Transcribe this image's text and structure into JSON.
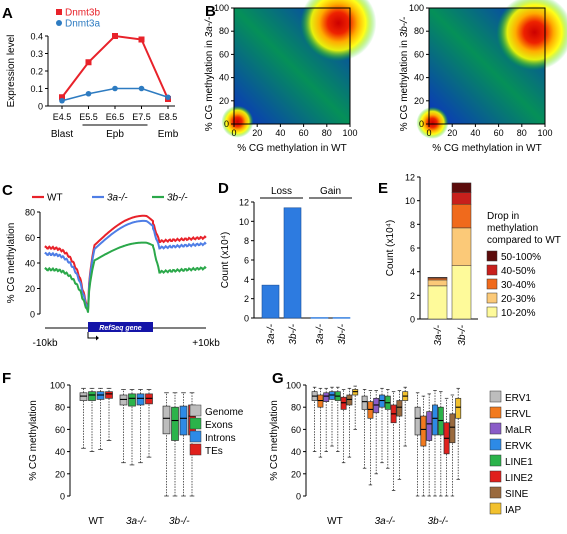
{
  "panels": {
    "A": "A",
    "B": "B",
    "C": "C",
    "D": "D",
    "E": "E",
    "F": "F",
    "G": "G"
  },
  "chart_data": [
    {
      "id": "A",
      "type": "line",
      "ylabel": "Expression level",
      "ylim": [
        0,
        0.4
      ],
      "yticks": [
        "0",
        "0.1",
        "0.2",
        "0.3",
        "0.4"
      ],
      "categories": [
        "E4.5",
        "E5.5",
        "E6.5",
        "E7.5",
        "E8.5"
      ],
      "groups": [
        {
          "label": "Blast",
          "from": 0,
          "to": 0
        },
        {
          "label": "Epb",
          "from": 1,
          "to": 3
        },
        {
          "label": "Emb",
          "from": 4,
          "to": 4
        }
      ],
      "series": [
        {
          "name": "Dnmt3b",
          "color": "#e8222a",
          "values": [
            0.05,
            0.25,
            0.4,
            0.38,
            0.04
          ]
        },
        {
          "name": "Dnmt3a",
          "color": "#2d7bc1",
          "values": [
            0.03,
            0.07,
            0.1,
            0.1,
            0.05
          ]
        }
      ],
      "legend": "top-left"
    },
    {
      "id": "B",
      "type": "heatmap",
      "plots": [
        {
          "xlabel": "% CG methylation in WT",
          "ylabel_prefix": "% CG methylation in ",
          "ylabel_italic": "3a-/-",
          "hotspots": [
            {
              "x": 3,
              "y": 2
            },
            {
              "x": 90,
              "y": 87
            }
          ]
        },
        {
          "xlabel": "% CG methylation in WT",
          "ylabel_prefix": "% CG methylation in ",
          "ylabel_italic": "3b-/-",
          "hotspots": [
            {
              "x": 3,
              "y": 1
            },
            {
              "x": 91,
              "y": 79
            }
          ]
        }
      ],
      "xlim": [
        0,
        100
      ],
      "ylim": [
        0,
        100
      ],
      "ticks": [
        "0",
        "20",
        "40",
        "60",
        "80",
        "100"
      ]
    },
    {
      "id": "C",
      "type": "line",
      "ylabel": "% CG methylation",
      "ylim": [
        0,
        80
      ],
      "yticks": [
        "0",
        "20",
        "40",
        "60",
        "80"
      ],
      "xtick_left": "-10kb",
      "xtick_right": "+10kb",
      "gene_label": "RefSeq gene",
      "series": [
        {
          "name": "WT",
          "color": "#e8222a",
          "italic": false,
          "left": 52,
          "tss_min": 3,
          "body_start": 54,
          "body_peak": 77,
          "tes": 71,
          "after": 60,
          "right": 60
        },
        {
          "name": "3a-/-",
          "color": "#4f7ee6",
          "italic": true,
          "left": 47,
          "tss_min": 2,
          "body_start": 51,
          "body_peak": 73,
          "tes": 67,
          "after": 55,
          "right": 55
        },
        {
          "name": "3b-/-",
          "color": "#2ba84a",
          "italic": true,
          "left": 35,
          "tss_min": 1,
          "body_start": 42,
          "body_peak": 56,
          "tes": 53,
          "after": 36,
          "right": 35
        }
      ],
      "legend": "top"
    },
    {
      "id": "D",
      "type": "bar",
      "ylabel": "Count (x10⁴)",
      "ylim": [
        0,
        12
      ],
      "yticks": [
        "0",
        "2",
        "4",
        "6",
        "8",
        "10",
        "12"
      ],
      "groups": [
        "Loss",
        "Gain"
      ],
      "categories": [
        "3a-/-",
        "3b-/-",
        "3a-/-",
        "3b-/-"
      ],
      "values": [
        3.4,
        11.4,
        0.05,
        0.05
      ],
      "color": "#2d7be0"
    },
    {
      "id": "E",
      "type": "bar",
      "ylabel": "Count (x10⁴)",
      "ylim": [
        0,
        12
      ],
      "yticks": [
        "0",
        "2",
        "4",
        "6",
        "8",
        "10",
        "12"
      ],
      "categories": [
        "3a-/-",
        "3b-/-"
      ],
      "legend_title": [
        "Drop in",
        "methylation",
        "compared to WT"
      ],
      "series": [
        {
          "name": "10-20%",
          "color": "#fefa9a",
          "values": [
            2.8,
            4.5
          ]
        },
        {
          "name": "20-30%",
          "color": "#fbc978",
          "values": [
            0.5,
            3.2
          ]
        },
        {
          "name": "30-40%",
          "color": "#f06a1c",
          "values": [
            0.15,
            2.0
          ]
        },
        {
          "name": "40-50%",
          "color": "#c8201c",
          "values": [
            0.05,
            1.0
          ]
        },
        {
          "name": "50-100%",
          "color": "#5c0c0c",
          "values": [
            0.02,
            0.8
          ]
        }
      ]
    },
    {
      "id": "F",
      "type": "box",
      "ylabel": "% CG methylation",
      "ylim": [
        0,
        100
      ],
      "yticks": [
        "0",
        "20",
        "40",
        "60",
        "80",
        "100"
      ],
      "groups": [
        {
          "label": "WT",
          "italic": false
        },
        {
          "label": "3a-/-",
          "italic": true
        },
        {
          "label": "3b-/-",
          "italic": true
        }
      ],
      "series": [
        {
          "name": "Genome",
          "color": "#bdbdbd",
          "stats": [
            [
              43,
              86,
              90,
              93,
              97
            ],
            [
              30,
              82,
              87,
              91,
              96
            ],
            [
              0,
              56,
              70,
              81,
              93
            ]
          ]
        },
        {
          "name": "Exons",
          "color": "#2bb34a",
          "stats": [
            [
              40,
              86,
              91,
              94,
              97
            ],
            [
              28,
              81,
              88,
              92,
              96
            ],
            [
              0,
              50,
              68,
              80,
              93
            ]
          ]
        },
        {
          "name": "Introns",
          "color": "#2d8ae6",
          "stats": [
            [
              42,
              87,
              91,
              94,
              97
            ],
            [
              30,
              82,
              88,
              92,
              96
            ],
            [
              0,
              55,
              70,
              81,
              93
            ]
          ]
        },
        {
          "name": "TEs",
          "color": "#e0201c",
          "stats": [
            [
              50,
              88,
              92,
              94,
              97
            ],
            [
              35,
              83,
              88,
              92,
              96
            ],
            [
              0,
              55,
              72,
              82,
              93
            ]
          ]
        }
      ]
    },
    {
      "id": "G",
      "type": "box",
      "ylabel": "% CG methylation",
      "ylim": [
        0,
        100
      ],
      "yticks": [
        "0",
        "20",
        "40",
        "60",
        "80",
        "100"
      ],
      "groups": [
        {
          "label": "WT",
          "italic": false
        },
        {
          "label": "3a-/-",
          "italic": true
        },
        {
          "label": "3b-/-",
          "italic": true
        }
      ],
      "series": [
        {
          "name": "ERV1",
          "color": "#bdbdbd",
          "stats": [
            [
              40,
              86,
              90,
              94,
              98
            ],
            [
              25,
              78,
              85,
              90,
              96
            ],
            [
              0,
              55,
              70,
              80,
              93
            ]
          ]
        },
        {
          "name": "ERVL",
          "color": "#f27a1e",
          "stats": [
            [
              35,
              80,
              86,
              91,
              97
            ],
            [
              10,
              70,
              78,
              85,
              95
            ],
            [
              0,
              45,
              60,
              72,
              90
            ]
          ]
        },
        {
          "name": "MaLR",
          "color": "#8a5cc8",
          "stats": [
            [
              40,
              85,
              90,
              93,
              97
            ],
            [
              20,
              75,
              82,
              88,
              95
            ],
            [
              0,
              50,
              65,
              76,
              92
            ]
          ]
        },
        {
          "name": "ERVK",
          "color": "#2d8ae6",
          "stats": [
            [
              45,
              87,
              91,
              94,
              98
            ],
            [
              30,
              80,
              86,
              91,
              97
            ],
            [
              0,
              55,
              70,
              82,
              95
            ]
          ]
        },
        {
          "name": "LINE1",
          "color": "#2bb34a",
          "stats": [
            [
              40,
              86,
              90,
              94,
              98
            ],
            [
              25,
              78,
              84,
              90,
              96
            ],
            [
              0,
              55,
              68,
              80,
              94
            ]
          ]
        },
        {
          "name": "LINE2",
          "color": "#e0201c",
          "stats": [
            [
              30,
              78,
              84,
              89,
              96
            ],
            [
              5,
              66,
              74,
              82,
              94
            ],
            [
              0,
              38,
              52,
              66,
              88
            ]
          ]
        },
        {
          "name": "SINE",
          "color": "#9a6a3e",
          "stats": [
            [
              35,
              82,
              87,
              91,
              97
            ],
            [
              15,
              72,
              80,
              86,
              95
            ],
            [
              0,
              48,
              62,
              74,
              91
            ]
          ]
        },
        {
          "name": "IAP",
          "color": "#f2c12e",
          "stats": [
            [
              60,
              91,
              94,
              96,
              99
            ],
            [
              45,
              86,
              90,
              94,
              98
            ],
            [
              15,
              70,
              80,
              88,
              97
            ]
          ]
        }
      ]
    }
  ]
}
